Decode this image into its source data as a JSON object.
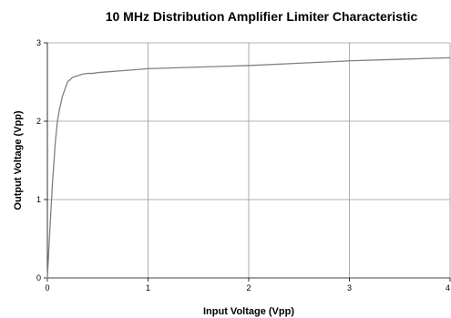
{
  "chart_data": {
    "type": "line",
    "title": "10 MHz Distribution Amplifier Limiter Characteristic",
    "xlabel": "Input Voltage (Vpp)",
    "ylabel": "Output Voltage (Vpp)",
    "xlim": [
      0,
      4
    ],
    "ylim": [
      0,
      3
    ],
    "x_ticks": [
      "0",
      "1",
      "2",
      "3",
      "4"
    ],
    "y_ticks": [
      "0",
      "1",
      "2",
      "3"
    ],
    "grid": true,
    "series": [
      {
        "color": "#808080",
        "x": [
          0,
          0.02,
          0.05,
          0.08,
          0.1,
          0.12,
          0.15,
          0.2,
          0.25,
          0.3,
          0.35,
          0.4,
          0.45,
          0.5,
          0.6,
          0.8,
          1.0,
          1.5,
          2.0,
          2.5,
          3.0,
          3.5,
          4.0
        ],
        "y": [
          0,
          0.5,
          1.2,
          1.75,
          2.0,
          2.15,
          2.32,
          2.5,
          2.56,
          2.58,
          2.6,
          2.61,
          2.61,
          2.62,
          2.63,
          2.65,
          2.67,
          2.69,
          2.71,
          2.74,
          2.77,
          2.79,
          2.81
        ]
      }
    ]
  }
}
